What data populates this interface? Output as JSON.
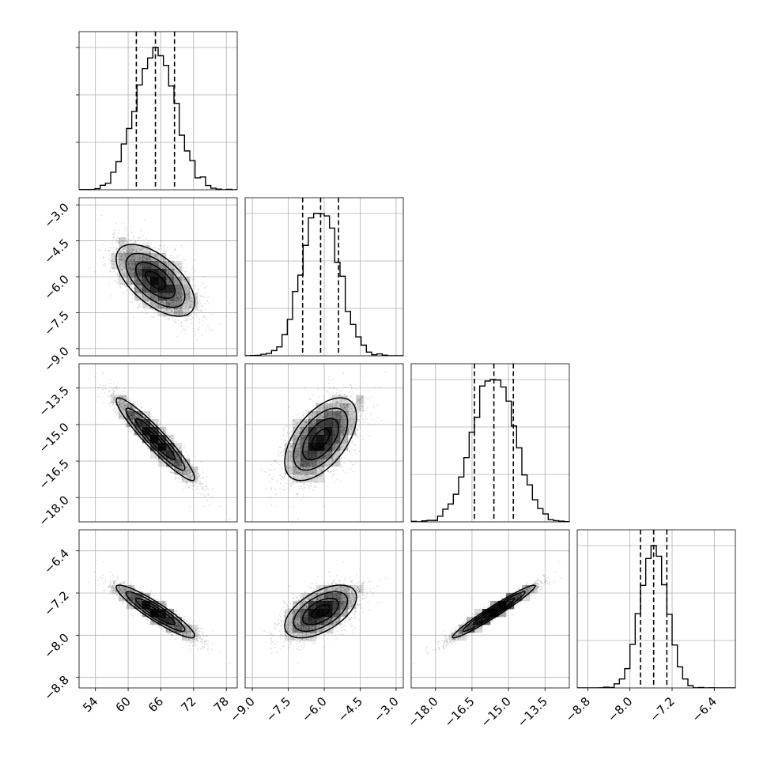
{
  "chart_data": {
    "type": "corner",
    "grid": true,
    "colors": {
      "line": "#000000",
      "grid": "#b0b0b0",
      "points": "#555555",
      "density": "#000000"
    },
    "parameters": [
      {
        "mean": 65.0,
        "std": 3.6,
        "range": [
          51.0,
          80.0
        ],
        "ticks": [
          54,
          60,
          66,
          72,
          78
        ],
        "tick_labels": [
          "54",
          "60",
          "66",
          "72",
          "78"
        ],
        "quantiles": [
          61.5,
          65.0,
          68.5
        ]
      },
      {
        "mean": -6.15,
        "std": 0.75,
        "range": [
          -9.3,
          -2.7
        ],
        "ticks": [
          -9.0,
          -7.5,
          -6.0,
          -4.5,
          -3.0
        ],
        "tick_labels": [
          "−9.0",
          "−7.5",
          "−6.0",
          "−4.5",
          "−3.0"
        ],
        "quantiles": [
          -6.9,
          -6.15,
          -5.4
        ]
      },
      {
        "mean": -15.6,
        "std": 0.85,
        "range": [
          -19.0,
          -12.5
        ],
        "ticks": [
          -18.0,
          -16.5,
          -15.0,
          -13.5
        ],
        "tick_labels": [
          "−18.0",
          "−16.5",
          "−15.0",
          "−13.5"
        ],
        "quantiles": [
          -16.4,
          -15.6,
          -14.8
        ]
      },
      {
        "mean": -7.55,
        "std": 0.25,
        "range": [
          -9.0,
          -6.0
        ],
        "ticks": [
          -8.8,
          -8.0,
          -7.2,
          -6.4
        ],
        "tick_labels": [
          "−8.8",
          "−8.0",
          "−7.2",
          "−6.4"
        ],
        "quantiles": [
          -7.8,
          -7.55,
          -7.3
        ]
      }
    ],
    "correlations": [
      [
        1.0,
        -0.6,
        -0.94,
        -0.92
      ],
      [
        -0.6,
        1.0,
        0.55,
        0.55
      ],
      [
        -0.94,
        0.55,
        1.0,
        0.97
      ],
      [
        -0.92,
        0.55,
        0.97,
        1.0
      ]
    ],
    "samples": 6000,
    "contour_levels": [
      0.5,
      1.0,
      1.5,
      2.0
    ]
  }
}
